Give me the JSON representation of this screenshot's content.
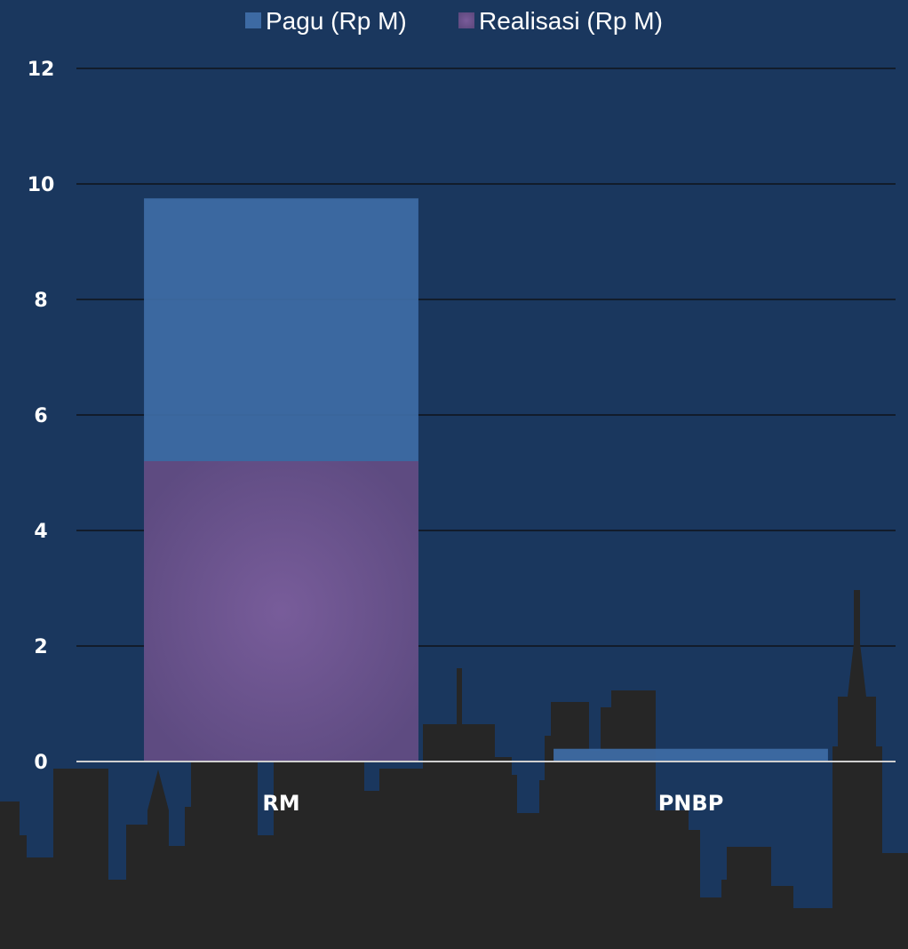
{
  "chart_data": {
    "type": "bar",
    "categories": [
      "RM",
      "PNBP"
    ],
    "series": [
      {
        "name": "Pagu (Rp M)",
        "values": [
          9.75,
          0.22
        ],
        "color": "#3d6aa3"
      },
      {
        "name": "Realisasi (Rp M)",
        "values": [
          5.2,
          0.0
        ],
        "color": "#6a5490"
      }
    ],
    "ylim": [
      0,
      12
    ],
    "yticks": [
      "0",
      "2",
      "4",
      "6",
      "8",
      "10",
      "12"
    ],
    "grid": true,
    "legend": "top-center",
    "bars_overlap": true,
    "background_color": "#1a375e",
    "skyline_color": "#262626"
  }
}
